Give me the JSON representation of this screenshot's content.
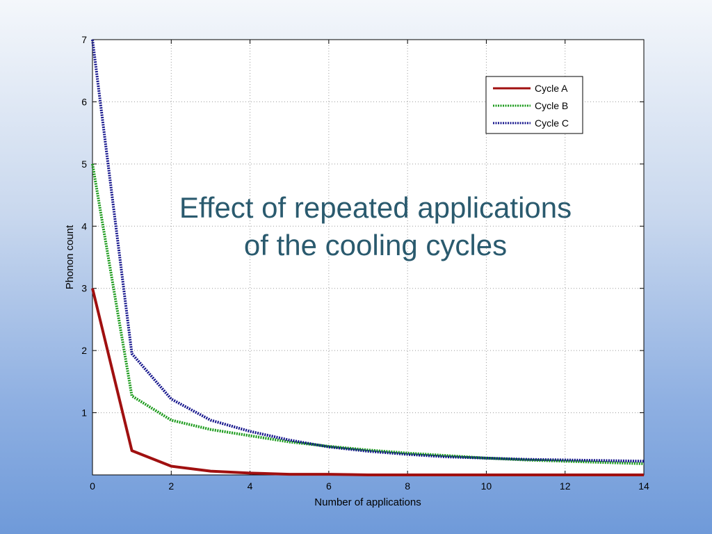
{
  "slide": {
    "title_line1": "Effect of repeated applications",
    "title_line2": "of the cooling cycles"
  },
  "chart_data": {
    "type": "line",
    "title": "",
    "xlabel": "Number of applications",
    "ylabel": "Phonon count",
    "xlim": [
      0,
      14
    ],
    "ylim": [
      0,
      7
    ],
    "xticks": [
      0,
      2,
      4,
      6,
      8,
      10,
      12,
      14
    ],
    "yticks": [
      1,
      2,
      3,
      4,
      5,
      6,
      7
    ],
    "grid": true,
    "legend_position": "top-right",
    "x": [
      0,
      1,
      2,
      3,
      4,
      5,
      6,
      7,
      8,
      9,
      10,
      11,
      12,
      13,
      14
    ],
    "series": [
      {
        "name": "Cycle A",
        "color": "#a01010",
        "style": "solid",
        "values": [
          3.0,
          0.39,
          0.14,
          0.06,
          0.03,
          0.01,
          0.01,
          0.0,
          0.0,
          0.0,
          0.0,
          0.0,
          0.0,
          0.0,
          0.0
        ]
      },
      {
        "name": "Cycle B",
        "color": "#1a9a1a",
        "style": "dotted",
        "values": [
          5.0,
          1.27,
          0.88,
          0.73,
          0.63,
          0.53,
          0.46,
          0.4,
          0.35,
          0.31,
          0.27,
          0.24,
          0.22,
          0.2,
          0.18
        ]
      },
      {
        "name": "Cycle C",
        "color": "#14148c",
        "style": "dotted",
        "values": [
          7.0,
          1.95,
          1.22,
          0.88,
          0.7,
          0.56,
          0.45,
          0.38,
          0.33,
          0.29,
          0.27,
          0.25,
          0.24,
          0.23,
          0.22
        ]
      }
    ]
  }
}
